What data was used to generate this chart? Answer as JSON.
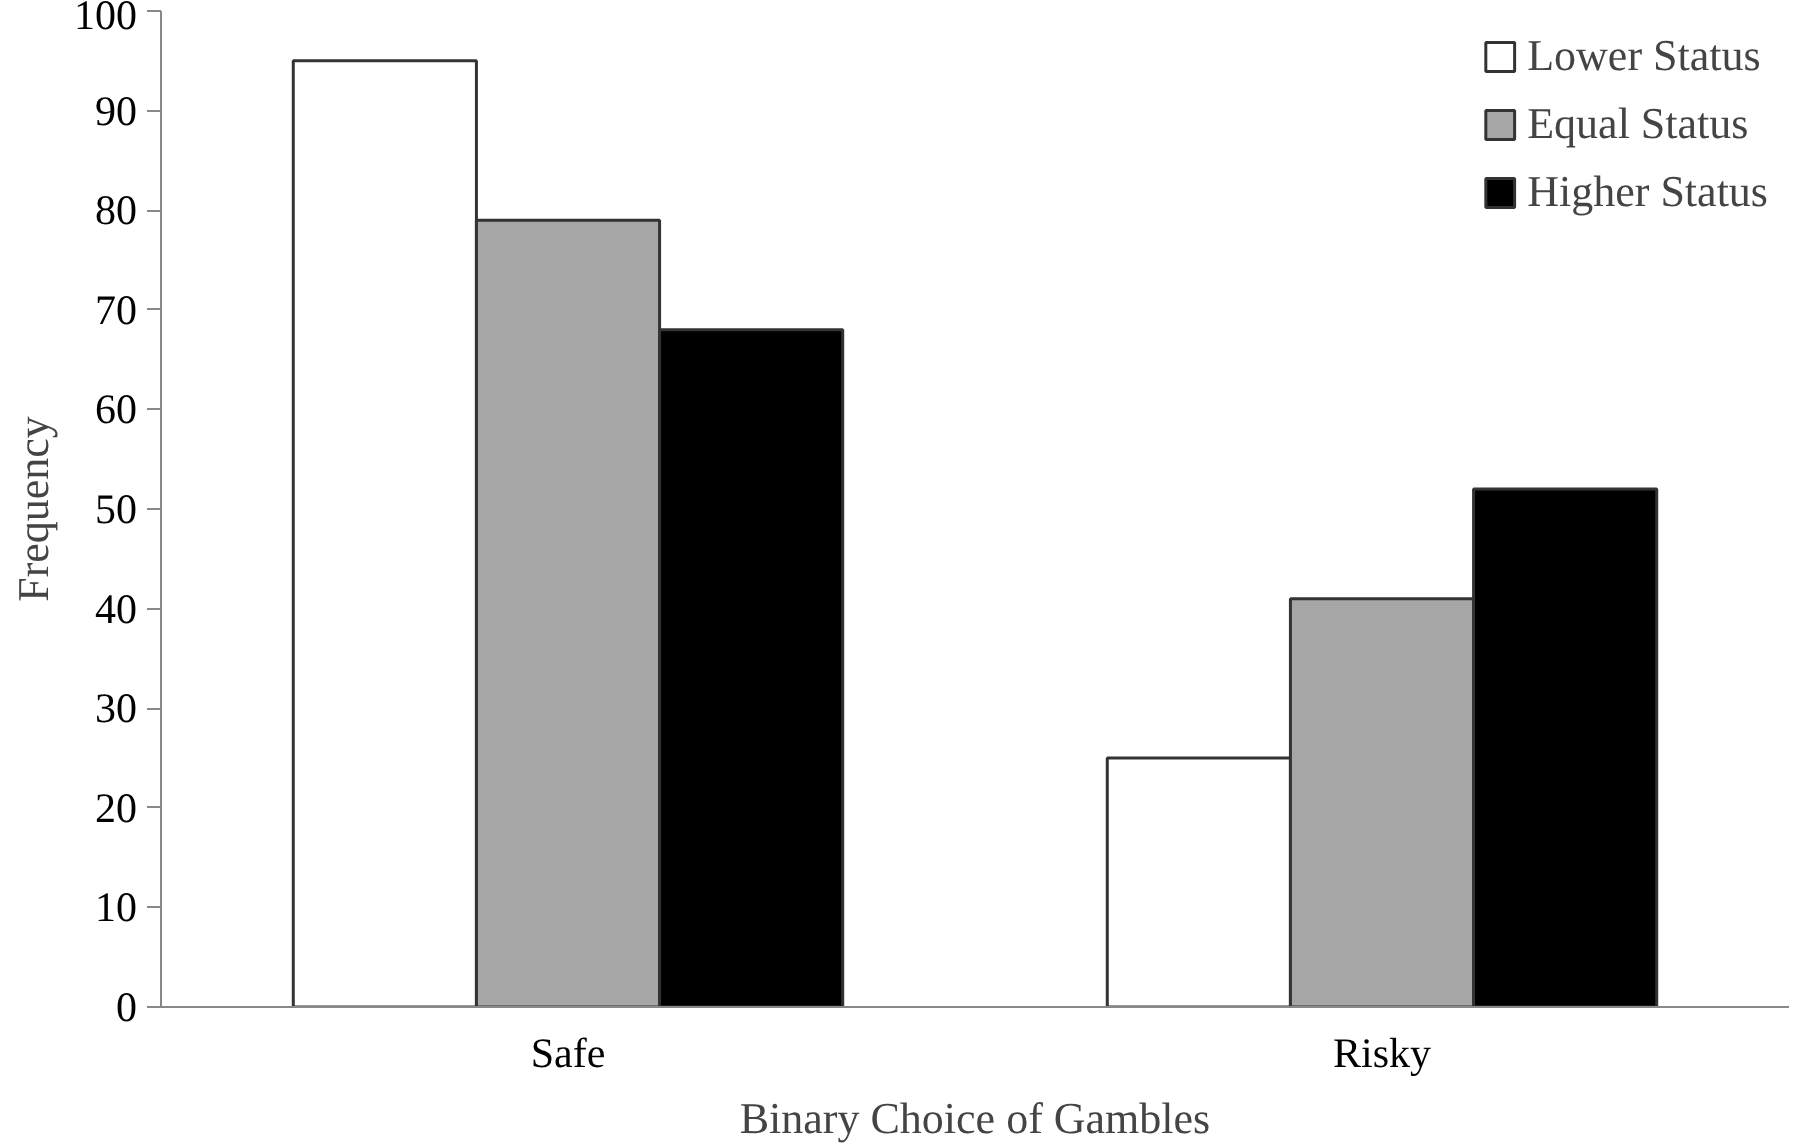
{
  "chart_data": {
    "type": "bar",
    "xlabel": "Binary Choice of Gambles",
    "ylabel": "Frequency",
    "categories": [
      "Safe",
      "Risky"
    ],
    "series": [
      {
        "name": "Lower Status",
        "color": "#ffffff",
        "values": [
          95,
          25
        ]
      },
      {
        "name": "Equal Status",
        "color": "#a6a6a6",
        "values": [
          79,
          41
        ]
      },
      {
        "name": "Higher Status",
        "color": "#000000",
        "values": [
          68,
          52
        ]
      }
    ],
    "ylim": [
      0,
      100
    ],
    "yticks": [
      0,
      10,
      20,
      30,
      40,
      50,
      60,
      70,
      80,
      90,
      100
    ],
    "grid": false,
    "legend": "top right"
  }
}
